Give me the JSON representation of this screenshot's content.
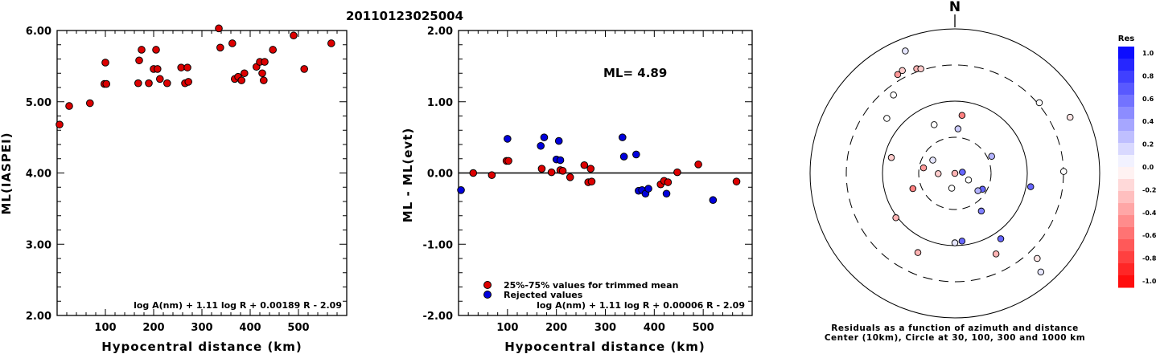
{
  "page_title": "20110123025004",
  "chart_data": [
    {
      "type": "scatter",
      "xlabel": "Hypocentral distance (km)",
      "ylabel": "ML(IASPEI)",
      "xlim": [
        0,
        600
      ],
      "ylim": [
        2,
        6
      ],
      "xticks": [
        "100",
        "200",
        "300",
        "400",
        "500"
      ],
      "yticks": [
        "2.00",
        "3.00",
        "4.00",
        "5.00",
        "6.00"
      ],
      "formula": "log A(nm) + 1.11 log R + 0.00189 R - 2.09",
      "series": [
        {
          "color": "#dd0000",
          "points": [
            [
              5,
              4.68
            ],
            [
              25,
              4.94
            ],
            [
              68,
              4.98
            ],
            [
              98,
              5.25
            ],
            [
              100,
              5.55
            ],
            [
              102,
              5.25
            ],
            [
              168,
              5.26
            ],
            [
              170,
              5.58
            ],
            [
              175,
              5.73
            ],
            [
              190,
              5.26
            ],
            [
              200,
              5.46
            ],
            [
              205,
              5.73
            ],
            [
              208,
              5.46
            ],
            [
              213,
              5.32
            ],
            [
              228,
              5.26
            ],
            [
              257,
              5.48
            ],
            [
              270,
              5.48
            ],
            [
              265,
              5.26
            ],
            [
              272,
              5.28
            ],
            [
              335,
              6.03
            ],
            [
              338,
              5.76
            ],
            [
              363,
              5.82
            ],
            [
              368,
              5.32
            ],
            [
              375,
              5.35
            ],
            [
              382,
              5.3
            ],
            [
              388,
              5.4
            ],
            [
              413,
              5.49
            ],
            [
              420,
              5.56
            ],
            [
              425,
              5.4
            ],
            [
              430,
              5.56
            ],
            [
              428,
              5.3
            ],
            [
              447,
              5.73
            ],
            [
              490,
              5.93
            ],
            [
              512,
              5.46
            ],
            [
              568,
              5.82
            ]
          ]
        }
      ]
    },
    {
      "type": "scatter",
      "xlabel": "Hypocentral distance (km)",
      "ylabel": "ML - ML(evt)",
      "xlim": [
        0,
        600
      ],
      "ylim": [
        -2,
        2
      ],
      "xticks": [
        "100",
        "200",
        "300",
        "400",
        "500"
      ],
      "yticks": [
        "-2.00",
        "-1.00",
        "0.00",
        "1.00",
        "2.00"
      ],
      "annotation": "ML= 4.89",
      "legend": [
        "25%-75% values for trimmed mean",
        "Rejected values"
      ],
      "formula": "log A(nm) + 1.11 log R + 0.00006 R - 2.09",
      "series": [
        {
          "name": "25%-75% values for trimmed mean",
          "color": "#dd0000",
          "points": [
            [
              30,
              0.0
            ],
            [
              68,
              -0.03
            ],
            [
              98,
              0.17
            ],
            [
              102,
              0.17
            ],
            [
              170,
              0.06
            ],
            [
              190,
              0.01
            ],
            [
              208,
              0.04
            ],
            [
              213,
              0.03
            ],
            [
              228,
              -0.06
            ],
            [
              257,
              0.11
            ],
            [
              270,
              0.06
            ],
            [
              265,
              -0.13
            ],
            [
              272,
              -0.12
            ],
            [
              413,
              -0.16
            ],
            [
              420,
              -0.11
            ],
            [
              428,
              -0.13
            ],
            [
              447,
              0.01
            ],
            [
              490,
              0.12
            ],
            [
              568,
              -0.12
            ]
          ]
        },
        {
          "name": "Rejected values",
          "color": "#0000dd",
          "points": [
            [
              5,
              -0.24
            ],
            [
              100,
              0.48
            ],
            [
              168,
              0.38
            ],
            [
              175,
              0.5
            ],
            [
              200,
              0.19
            ],
            [
              205,
              0.45
            ],
            [
              208,
              0.18
            ],
            [
              335,
              0.5
            ],
            [
              338,
              0.23
            ],
            [
              363,
              0.26
            ],
            [
              368,
              -0.25
            ],
            [
              375,
              -0.24
            ],
            [
              382,
              -0.29
            ],
            [
              388,
              -0.22
            ],
            [
              425,
              -0.29
            ],
            [
              520,
              -0.38
            ]
          ]
        }
      ]
    },
    {
      "type": "polar-scatter",
      "north_label": "N",
      "caption_line1": "Residuals as a function of azimuth and distance",
      "caption_line2": "Center (10km), Circle at 30, 100, 300 and 1000 km",
      "points": [
        [
          10,
          0,
          -0.3
        ],
        [
          7,
          -0.4,
          -0.5
        ],
        [
          4,
          -0.3,
          0.2
        ],
        [
          50,
          -0.75,
          0
        ],
        [
          64,
          -0.88,
          -0.1
        ],
        [
          65,
          0.27,
          0.3
        ],
        [
          81,
          0.05,
          0.6
        ],
        [
          89,
          -0.74,
          0
        ],
        [
          100,
          0.53,
          0.6
        ],
        [
          116,
          -0.1,
          0
        ],
        [
          120,
          0.21,
          0.6
        ],
        [
          127,
          0.19,
          0.3
        ],
        [
          153,
          0.62,
          -0.3
        ],
        [
          136,
          0.81,
          -0.1
        ],
        [
          139,
          0.9,
          0.1
        ],
        [
          145,
          0.31,
          0.5
        ],
        [
          145,
          0.55,
          0.6
        ],
        [
          174,
          0.47,
          0.6
        ],
        [
          180,
          0.48,
          0.1
        ],
        [
          192,
          0.1,
          0
        ],
        [
          205,
          0.6,
          -0.3
        ],
        [
          233,
          0.51,
          -0.3
        ],
        [
          250,
          0.3,
          -0.5
        ],
        [
          269,
          -0.11,
          -0.2
        ],
        [
          280,
          -0.21,
          -0.4
        ],
        [
          284,
          -0.45,
          -0.2
        ],
        [
          301,
          -0.17,
          0.1
        ],
        [
          309,
          0.6,
          0
        ],
        [
          322,
          0.68,
          0
        ],
        [
          337,
          0.36,
          0
        ],
        [
          338,
          0.91,
          0.1
        ],
        [
          330,
          0.78,
          -0.4
        ],
        [
          333,
          0.79,
          -0.2
        ],
        [
          340,
          0.76,
          -0.3
        ],
        [
          342,
          0.75,
          -0.2
        ]
      ],
      "colorbar": {
        "title": "Res",
        "labels": [
          "1.0",
          "0.8",
          "0.6",
          "0.4",
          "0.2",
          "0.0",
          "-0.2",
          "-0.4",
          "-0.6",
          "-0.8",
          "-1.0"
        ]
      }
    }
  ]
}
